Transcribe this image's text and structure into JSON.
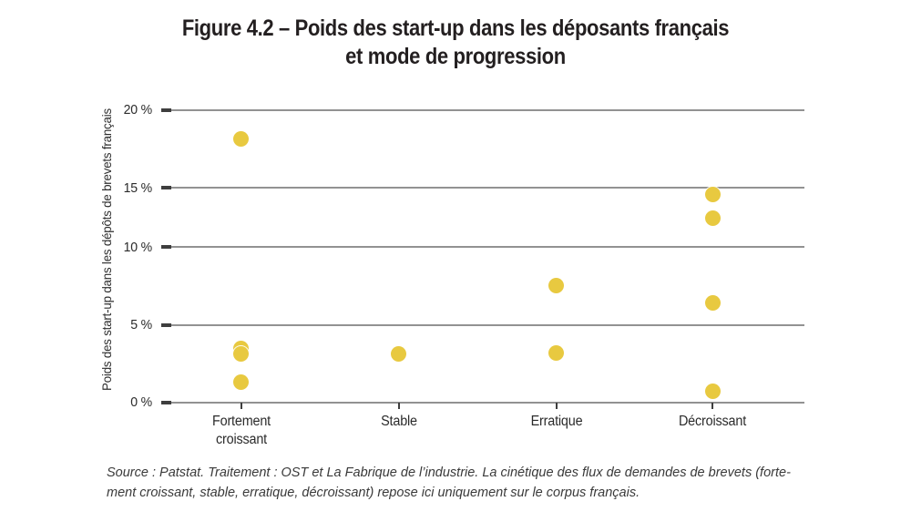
{
  "title": {
    "line1": "Figure 4.2 – Poids des start-up dans les déposants français",
    "line2": "et mode de progression"
  },
  "chart_data": {
    "type": "scatter",
    "title": "Figure 4.2 – Poids des start-up dans les déposants français et mode de progression",
    "xlabel": "",
    "ylabel": "Poids des start-up dans les dépôts de brevets français",
    "ylim": [
      0,
      20
    ],
    "yticks": [
      0,
      5,
      10,
      15,
      20
    ],
    "ytick_labels": [
      "0 %",
      "5 %",
      "10 %",
      "15 %",
      "20 %"
    ],
    "grid": "horizontal gridlines at each y tick",
    "legend": "none",
    "dot_color": "#e8c940",
    "categories": [
      {
        "name": "Fortement croissant",
        "label_lines": [
          "Fortement",
          "croissant"
        ]
      },
      {
        "name": "Stable",
        "label_lines": [
          "Stable"
        ]
      },
      {
        "name": "Erratique",
        "label_lines": [
          "Erratique"
        ]
      },
      {
        "name": "Décroissant",
        "label_lines": [
          "Décroissant"
        ]
      }
    ],
    "points": [
      {
        "cat": 0,
        "category": "Fortement croissant",
        "value": 18.1
      },
      {
        "cat": 0,
        "category": "Fortement croissant",
        "value": 3.5
      },
      {
        "cat": 0,
        "category": "Fortement croissant",
        "value": 3.1
      },
      {
        "cat": 0,
        "category": "Fortement croissant",
        "value": 1.3
      },
      {
        "cat": 1,
        "category": "Stable",
        "value": 3.1
      },
      {
        "cat": 2,
        "category": "Erratique",
        "value": 7.5
      },
      {
        "cat": 2,
        "category": "Erratique",
        "value": 3.2
      },
      {
        "cat": 3,
        "category": "Décroissant",
        "value": 14.4
      },
      {
        "cat": 3,
        "category": "Décroissant",
        "value": 12.4
      },
      {
        "cat": 3,
        "category": "Décroissant",
        "value": 6.4
      },
      {
        "cat": 3,
        "category": "Décroissant",
        "value": 0.7
      }
    ]
  },
  "source": {
    "line1": "Source : Patstat. Traitement : OST et La Fabrique de l’industrie. La cinétique des flux de demandes de brevets (forte-",
    "line2": "ment croissant, stable, erratique, décroissant) repose ici uniquement sur le corpus français."
  },
  "colors": {
    "background": "#ffffff",
    "dot": "#e8c940",
    "gridline": "#929292",
    "tick": "#3e3e3e",
    "text": "#231f20"
  }
}
